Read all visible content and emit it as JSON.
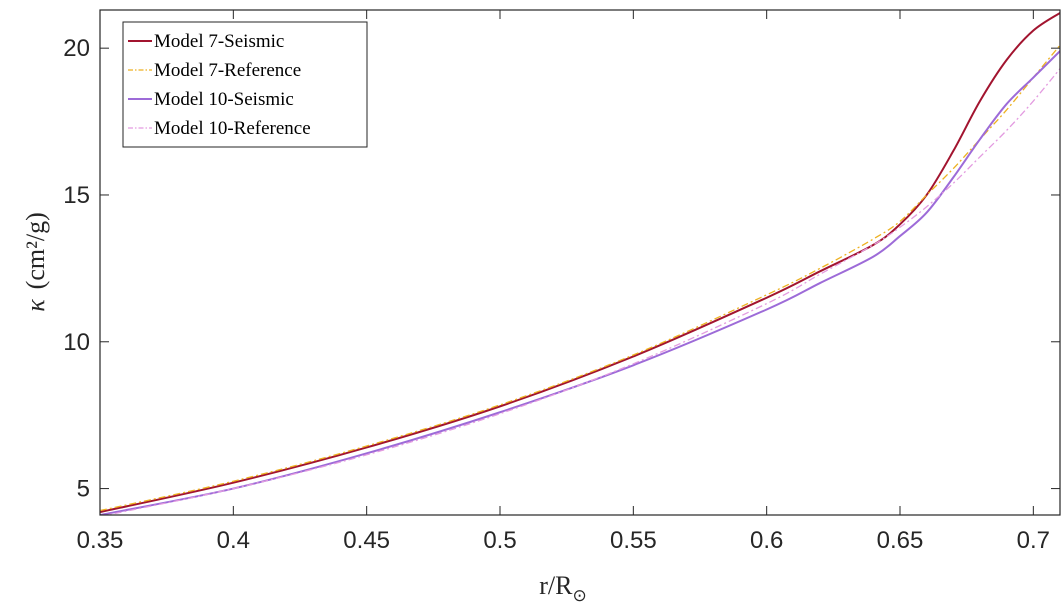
{
  "chart_data": {
    "type": "line",
    "title": "",
    "xlabel": "r/R",
    "xlabel_sub": "⊙",
    "ylabel_symbol": "κ",
    "ylabel_unit": "(cm²/g)",
    "xlim": [
      0.35,
      0.71
    ],
    "ylim": [
      4.1,
      21.3
    ],
    "xticks": [
      0.35,
      0.4,
      0.45,
      0.5,
      0.55,
      0.6,
      0.65,
      0.7
    ],
    "xtick_labels": [
      "0.35",
      "0.4",
      "0.45",
      "0.5",
      "0.55",
      "0.6",
      "0.65",
      "0.7"
    ],
    "yticks": [
      5,
      10,
      15,
      20
    ],
    "ytick_labels": [
      "5",
      "10",
      "15",
      "20"
    ],
    "grid": false,
    "legend_position": "top-left",
    "series": [
      {
        "name": "Model 7-Seismic",
        "color": "#a2142f",
        "dash": "solid",
        "x": [
          0.35,
          0.4,
          0.45,
          0.5,
          0.55,
          0.6,
          0.62,
          0.64,
          0.65,
          0.66,
          0.67,
          0.68,
          0.69,
          0.7,
          0.71
        ],
        "y": [
          4.2,
          5.2,
          6.4,
          7.8,
          9.5,
          11.5,
          12.4,
          13.3,
          14.0,
          15.0,
          16.5,
          18.2,
          19.6,
          20.6,
          21.2
        ]
      },
      {
        "name": "Model 7-Reference",
        "color": "#edb120",
        "dash": "dashdot",
        "x": [
          0.35,
          0.4,
          0.45,
          0.5,
          0.55,
          0.6,
          0.62,
          0.64,
          0.65,
          0.66,
          0.67,
          0.68,
          0.69,
          0.7,
          0.71
        ],
        "y": [
          4.25,
          5.25,
          6.45,
          7.85,
          9.55,
          11.6,
          12.5,
          13.5,
          14.1,
          15.0,
          15.9,
          16.9,
          17.9,
          19.0,
          20.1
        ]
      },
      {
        "name": "Model 10-Seismic",
        "color": "#9d6bd8",
        "dash": "solid",
        "x": [
          0.35,
          0.4,
          0.45,
          0.5,
          0.55,
          0.6,
          0.62,
          0.64,
          0.65,
          0.66,
          0.67,
          0.68,
          0.69,
          0.7,
          0.71
        ],
        "y": [
          4.1,
          5.0,
          6.2,
          7.6,
          9.2,
          11.1,
          12.0,
          12.9,
          13.6,
          14.4,
          15.6,
          16.9,
          18.1,
          19.0,
          19.9
        ]
      },
      {
        "name": "Model 10-Reference",
        "color": "#e39be0",
        "dash": "dashdot",
        "x": [
          0.35,
          0.4,
          0.45,
          0.5,
          0.55,
          0.6,
          0.62,
          0.64,
          0.65,
          0.66,
          0.67,
          0.68,
          0.69,
          0.7,
          0.71
        ],
        "y": [
          4.05,
          5.0,
          6.15,
          7.55,
          9.25,
          11.3,
          12.3,
          13.3,
          13.9,
          14.6,
          15.4,
          16.3,
          17.2,
          18.2,
          19.3
        ]
      }
    ]
  }
}
